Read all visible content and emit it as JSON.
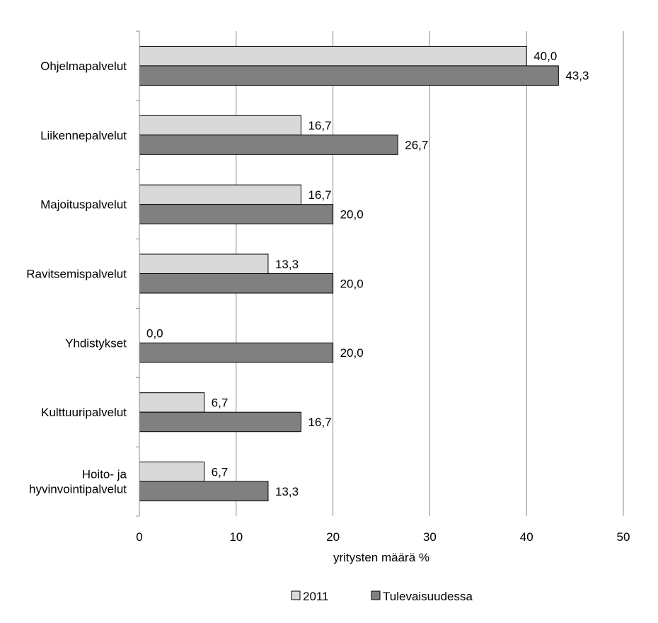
{
  "chart_data": {
    "type": "bar",
    "orientation": "horizontal",
    "categories": [
      [
        "Ohjelmapalvelut"
      ],
      [
        "Liikennepalvelut"
      ],
      [
        "Majoituspalvelut"
      ],
      [
        "Ravitsemispalvelut"
      ],
      [
        "Yhdistykset"
      ],
      [
        "Kulttuuripalvelut"
      ],
      [
        "Hoito- ja",
        "hyvinvointipalvelut"
      ]
    ],
    "series": [
      {
        "name": "2011",
        "color": "#d9d9d9",
        "values": [
          40.0,
          16.7,
          16.7,
          13.3,
          0.0,
          6.7,
          6.7
        ],
        "labels": [
          "40,0",
          "16,7",
          "16,7",
          "13,3",
          "0,0",
          "6,7",
          "6,7"
        ]
      },
      {
        "name": "Tulevaisuudessa",
        "color": "#808080",
        "values": [
          43.3,
          26.7,
          20.0,
          20.0,
          20.0,
          16.7,
          13.3
        ],
        "labels": [
          "43,3",
          "26,7",
          "20,0",
          "20,0",
          "20,0",
          "16,7",
          "13,3"
        ]
      }
    ],
    "xlabel": "yritysten määrä %",
    "xlim": [
      0,
      50
    ],
    "xticks": [
      0,
      10,
      20,
      30,
      40,
      50
    ],
    "xtick_labels": [
      "0",
      "10",
      "20",
      "30",
      "40",
      "50"
    ],
    "grid": "vertical",
    "legend_position": "bottom"
  }
}
